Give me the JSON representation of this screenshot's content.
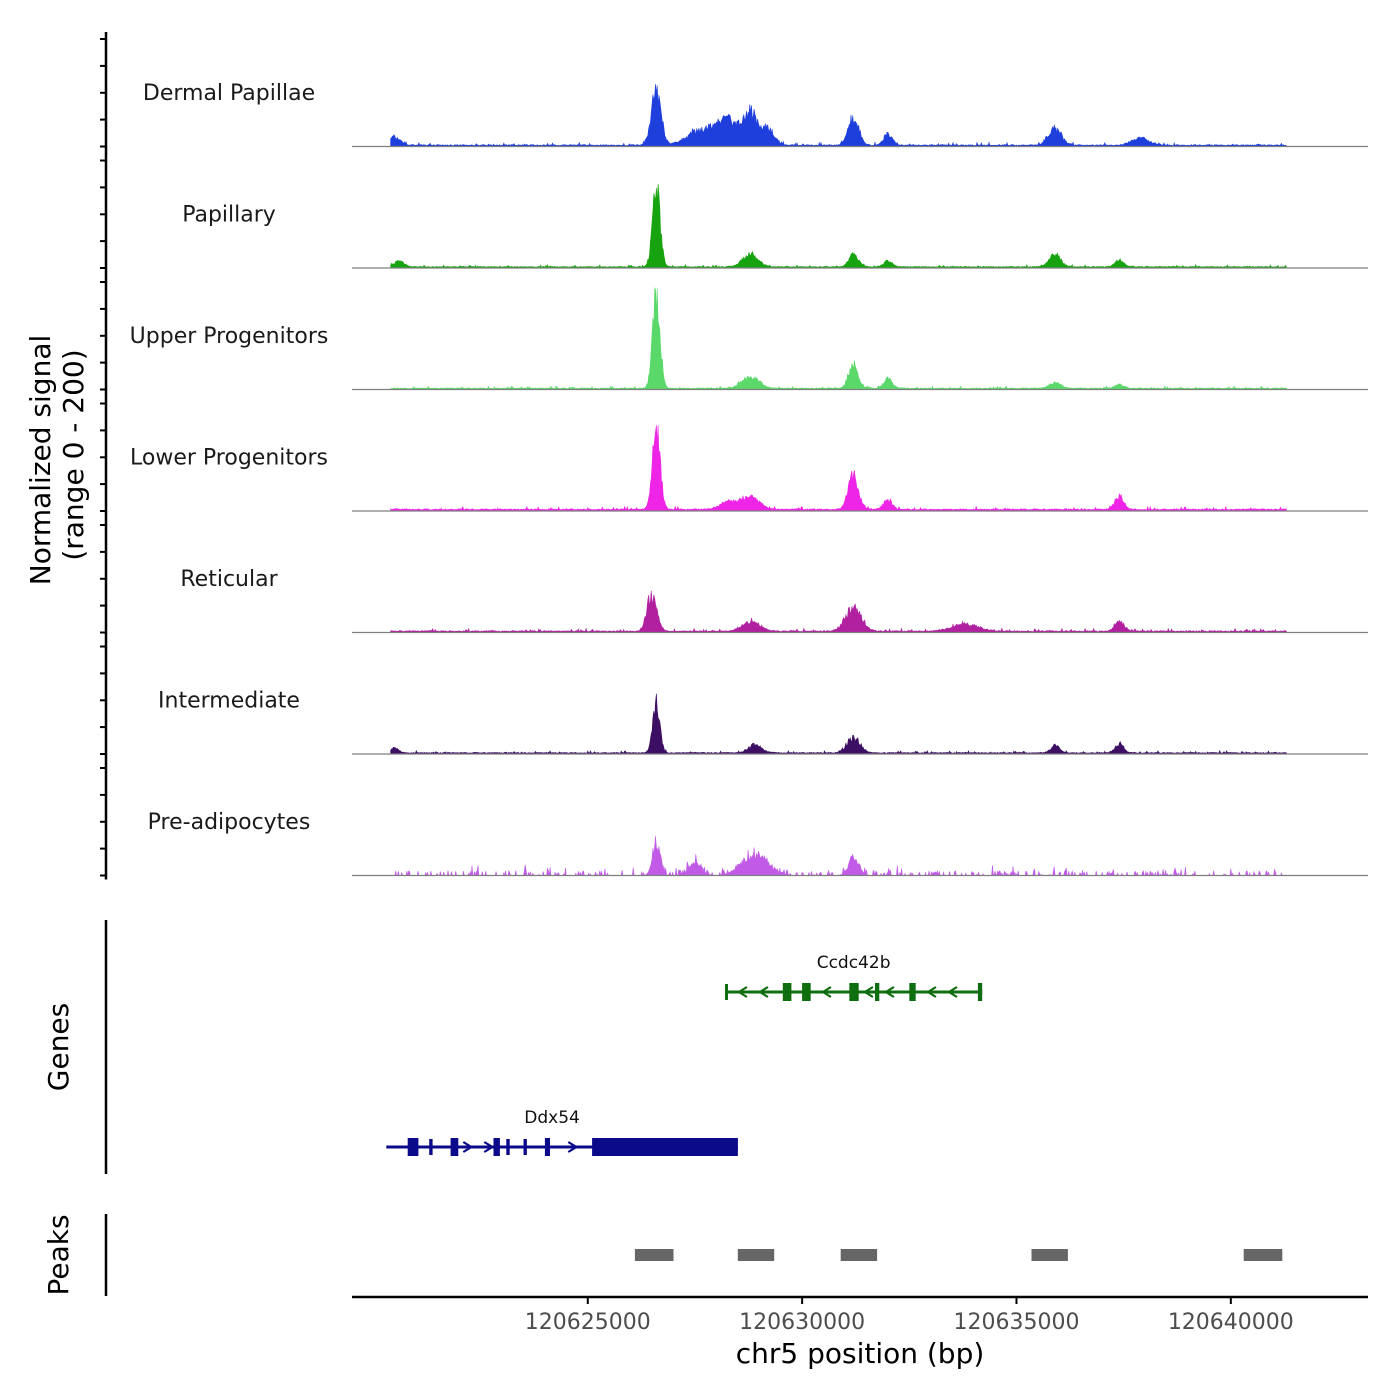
{
  "chart_data": {
    "type": "area",
    "chromosome": "chr5",
    "xlabel": "chr5 position (bp)",
    "xlim": [
      120619500,
      120643200
    ],
    "xticks": [
      120625000,
      120630000,
      120635000,
      120640000
    ],
    "xtick_labels": [
      "120625000",
      "120630000",
      "120635000",
      "120640000"
    ],
    "ylabel_line1": "Normalized signal",
    "ylabel_line2": "(range 0 - 200)",
    "ylim": [
      0,
      200
    ],
    "coverage_extent": [
      120620400,
      120641300
    ],
    "tracks": [
      {
        "name": "Dermal Papillae",
        "color": "#1f3fdc",
        "baseline": 3,
        "noise": 4,
        "style": "continuous",
        "peaks": [
          {
            "pos": 120620500,
            "height": 30,
            "width": 120
          },
          {
            "pos": 120626600,
            "height": 195,
            "width": 110
          },
          {
            "pos": 120627700,
            "height": 55,
            "width": 350
          },
          {
            "pos": 120628300,
            "height": 80,
            "width": 250
          },
          {
            "pos": 120628800,
            "height": 110,
            "width": 150
          },
          {
            "pos": 120629200,
            "height": 60,
            "width": 150
          },
          {
            "pos": 120631200,
            "height": 100,
            "width": 120
          },
          {
            "pos": 120632000,
            "height": 40,
            "width": 100
          },
          {
            "pos": 120635900,
            "height": 60,
            "width": 150
          },
          {
            "pos": 120637900,
            "height": 25,
            "width": 200
          }
        ]
      },
      {
        "name": "Papillary",
        "color": "#17a30f",
        "baseline": 3,
        "noise": 3,
        "style": "continuous",
        "peaks": [
          {
            "pos": 120620600,
            "height": 20,
            "width": 120
          },
          {
            "pos": 120626600,
            "height": 300,
            "width": 85
          },
          {
            "pos": 120628800,
            "height": 45,
            "width": 180
          },
          {
            "pos": 120631200,
            "height": 45,
            "width": 110
          },
          {
            "pos": 120632000,
            "height": 20,
            "width": 100
          },
          {
            "pos": 120635900,
            "height": 45,
            "width": 130
          },
          {
            "pos": 120637400,
            "height": 25,
            "width": 100
          }
        ]
      },
      {
        "name": "Upper Progenitors",
        "color": "#5ad86a",
        "baseline": 3,
        "noise": 3,
        "style": "continuous",
        "peaks": [
          {
            "pos": 120626600,
            "height": 350,
            "width": 85
          },
          {
            "pos": 120628800,
            "height": 40,
            "width": 200
          },
          {
            "pos": 120631200,
            "height": 80,
            "width": 110
          },
          {
            "pos": 120632000,
            "height": 35,
            "width": 100
          },
          {
            "pos": 120635900,
            "height": 20,
            "width": 130
          },
          {
            "pos": 120637400,
            "height": 15,
            "width": 100
          }
        ]
      },
      {
        "name": "Lower Progenitors",
        "color": "#ee25e6",
        "baseline": 4,
        "noise": 4,
        "style": "continuous",
        "peaks": [
          {
            "pos": 120626600,
            "height": 285,
            "width": 90
          },
          {
            "pos": 120628300,
            "height": 30,
            "width": 200
          },
          {
            "pos": 120628800,
            "height": 45,
            "width": 200
          },
          {
            "pos": 120631200,
            "height": 120,
            "width": 120
          },
          {
            "pos": 120632000,
            "height": 35,
            "width": 100
          },
          {
            "pos": 120637400,
            "height": 50,
            "width": 100
          }
        ]
      },
      {
        "name": "Reticular",
        "color": "#b0209f",
        "baseline": 3,
        "noise": 4,
        "style": "continuous",
        "peaks": [
          {
            "pos": 120626500,
            "height": 140,
            "width": 110
          },
          {
            "pos": 120628800,
            "height": 35,
            "width": 200
          },
          {
            "pos": 120631200,
            "height": 85,
            "width": 180
          },
          {
            "pos": 120633800,
            "height": 25,
            "width": 300
          },
          {
            "pos": 120637400,
            "height": 38,
            "width": 100
          }
        ]
      },
      {
        "name": "Intermediate",
        "color": "#3d0f64",
        "baseline": 3,
        "noise": 3,
        "style": "continuous",
        "peaks": [
          {
            "pos": 120620500,
            "height": 20,
            "width": 80
          },
          {
            "pos": 120626600,
            "height": 190,
            "width": 80
          },
          {
            "pos": 120628900,
            "height": 30,
            "width": 150
          },
          {
            "pos": 120631200,
            "height": 55,
            "width": 150
          },
          {
            "pos": 120635900,
            "height": 25,
            "width": 100
          },
          {
            "pos": 120637400,
            "height": 30,
            "width": 100
          }
        ]
      },
      {
        "name": "Pre-adipocytes",
        "color": "#c15be7",
        "baseline": 4,
        "noise": 14,
        "style": "sparse",
        "peaks": [
          {
            "pos": 120626600,
            "height": 120,
            "width": 90
          },
          {
            "pos": 120628900,
            "height": 75,
            "width": 300
          },
          {
            "pos": 120631200,
            "height": 65,
            "width": 120
          },
          {
            "pos": 120627500,
            "height": 40,
            "width": 150
          }
        ]
      }
    ],
    "genes_label": "Genes",
    "genes": [
      {
        "name": "Ccdc42b",
        "color": "#0f6e0f",
        "strand": "-",
        "start": 120628200,
        "end": 120634200,
        "row": 0,
        "exons": [
          [
            120628200,
            120628260
          ],
          [
            120629550,
            120629750
          ],
          [
            120630000,
            120630200
          ],
          [
            120631100,
            120631320
          ],
          [
            120631700,
            120631800
          ],
          [
            120632500,
            120632650
          ],
          [
            120634100,
            120634200
          ]
        ]
      },
      {
        "name": "Ddx54",
        "color": "#0a0a8a",
        "strand": "+",
        "start": 120620300,
        "end": 120628500,
        "row": 1,
        "exons": [
          [
            120620800,
            120621050
          ],
          [
            120621300,
            120621380
          ],
          [
            120621800,
            120621980
          ],
          [
            120622800,
            120622950
          ],
          [
            120623100,
            120623180
          ],
          [
            120623500,
            120623580
          ],
          [
            120624000,
            120624120
          ],
          [
            120625100,
            120628500
          ]
        ]
      }
    ],
    "peaks_label": "Peaks",
    "peak_regions": [
      [
        120626100,
        120627000
      ],
      [
        120628500,
        120629350
      ],
      [
        120630900,
        120631750
      ],
      [
        120635350,
        120636200
      ],
      [
        120640300,
        120641200
      ]
    ]
  }
}
